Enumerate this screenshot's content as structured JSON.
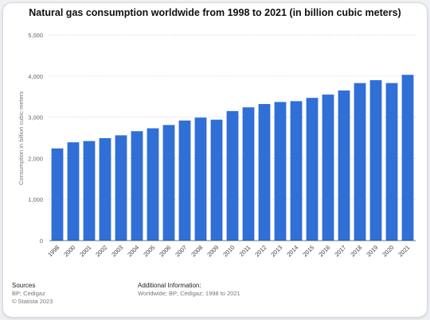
{
  "chart_data": {
    "type": "bar",
    "title": "Natural gas consumption worldwide from 1998 to 2021 (in billion cubic meters)",
    "xlabel": "",
    "ylabel": "Consumption in billion cubic meters",
    "categories": [
      "1998",
      "2000",
      "2001",
      "2002",
      "2003",
      "2004",
      "2005",
      "2006",
      "2007",
      "2008",
      "2009",
      "2010",
      "2011",
      "2012",
      "2013",
      "2014",
      "2015",
      "2016",
      "2017",
      "2018",
      "2019",
      "2020",
      "2021"
    ],
    "values": [
      2240,
      2390,
      2420,
      2490,
      2560,
      2660,
      2730,
      2810,
      2920,
      2990,
      2940,
      3150,
      3240,
      3320,
      3370,
      3390,
      3470,
      3550,
      3650,
      3830,
      3900,
      3830,
      4030
    ],
    "ylim": [
      0,
      5000
    ],
    "yticks": [
      0,
      1000,
      2000,
      3000,
      4000,
      5000
    ],
    "ytick_labels": [
      "0",
      "1,000",
      "2,000",
      "3,000",
      "4,000",
      "5,000"
    ],
    "bar_color": "#2f6fd6",
    "grid": true,
    "grid_style": "dotted",
    "legend": "none"
  },
  "footer": {
    "sources_label": "Sources",
    "sources_line1": "BP; Cedigaz",
    "sources_line2": "© Statista 2023",
    "additional_label": "Additional Information:",
    "additional_text": "Worldwide; BP; Cedigaz; 1998 to 2021"
  }
}
